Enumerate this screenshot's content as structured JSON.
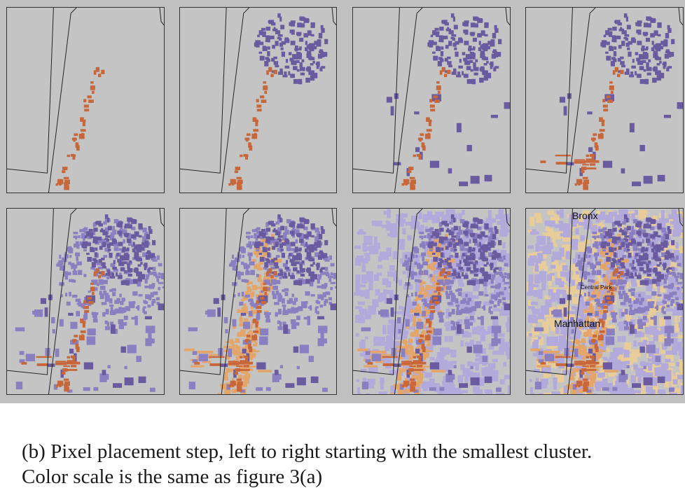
{
  "figure": {
    "panels": [
      {
        "row": 1,
        "column": 1
      },
      {
        "row": 1,
        "column": 2
      },
      {
        "row": 1,
        "column": 3
      },
      {
        "row": 1,
        "column": 4
      },
      {
        "row": 2,
        "column": 1
      },
      {
        "row": 2,
        "column": 2
      },
      {
        "row": 2,
        "column": 3
      },
      {
        "row": 2,
        "column": 4
      }
    ],
    "map_labels": {
      "bronx": "Bronx",
      "central_park": "Central Park",
      "manhattan": "Manhattan"
    },
    "colors": {
      "background": "#c0c0c0",
      "orange_strong": "#c8673a",
      "orange_light": "#e3a56a",
      "orange_pale": "#e8cc99",
      "purple_strong": "#6a5aa0",
      "purple_mid": "#8a7fc0",
      "purple_light": "#b2aadb"
    }
  },
  "caption": {
    "line1": "(b) Pixel placement step, left to right starting with the smallest cluster.",
    "line2": "Color scale is the same as figure 3(a)"
  }
}
